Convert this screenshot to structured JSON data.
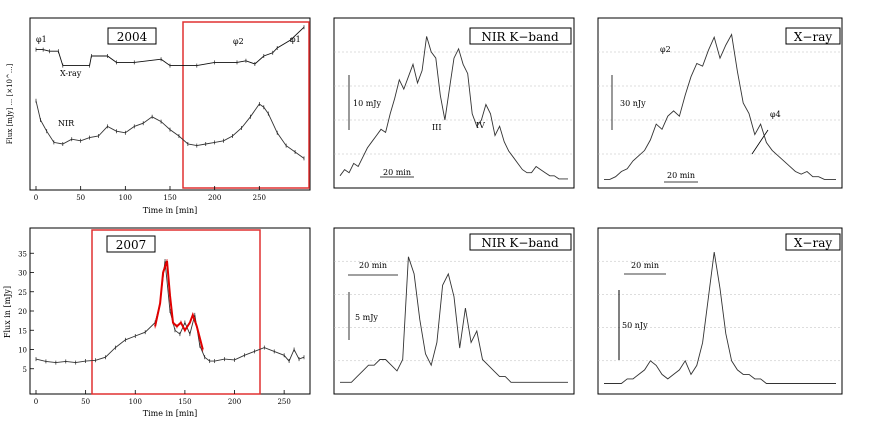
{
  "chart_data": [
    {
      "id": "p1",
      "type": "line",
      "label_box": "2004",
      "xlabel": "Time in [min]",
      "ylabel": "Flux [mJy] ... [×10^...]",
      "xlim": [
        0,
        300
      ],
      "ylim": [
        0,
        10
      ],
      "x_ticks": [
        "0",
        "50",
        "100",
        "150",
        "200",
        "250"
      ],
      "annotations": [
        "φ1",
        "φ2",
        "φ1",
        "X-ray",
        "NIR"
      ],
      "series": [
        {
          "name": "X-ray",
          "x": [
            0,
            8,
            15,
            25,
            30,
            60,
            62,
            80,
            90,
            110,
            140,
            150,
            180,
            200,
            225,
            235,
            245,
            255,
            265,
            270,
            285,
            300
          ],
          "y": [
            8.4,
            8.4,
            8.3,
            8.3,
            7.4,
            7.4,
            8.0,
            8.0,
            7.6,
            7.6,
            7.8,
            7.4,
            7.4,
            7.6,
            7.6,
            7.7,
            7.5,
            8.0,
            8.2,
            8.5,
            9.0,
            9.8
          ]
        },
        {
          "name": "NIR",
          "x": [
            0,
            5,
            12,
            20,
            30,
            40,
            50,
            60,
            70,
            80,
            90,
            100,
            110,
            120,
            130,
            140,
            150,
            160,
            170,
            180,
            190,
            200,
            210,
            220,
            230,
            240,
            250,
            255,
            260,
            270,
            280,
            290,
            300
          ],
          "y": [
            5.2,
            4.0,
            3.3,
            2.6,
            2.5,
            2.8,
            2.7,
            2.9,
            3.0,
            3.6,
            3.3,
            3.2,
            3.6,
            3.8,
            4.2,
            3.9,
            3.4,
            3.0,
            2.5,
            2.4,
            2.5,
            2.6,
            2.7,
            3.0,
            3.5,
            4.2,
            5.0,
            4.8,
            4.4,
            3.2,
            2.4,
            2.0,
            1.6
          ]
        }
      ],
      "highlight_range": [
        170,
        300
      ]
    },
    {
      "id": "p2",
      "type": "line",
      "label_box": "NIR  K−band",
      "annotations": [
        "10 mJy",
        "III",
        "IV",
        "20 min"
      ],
      "series": [
        {
          "name": "NIR K-band",
          "x": [
            0,
            1,
            2,
            3,
            4,
            5,
            6,
            7,
            8,
            9,
            10,
            11,
            12,
            13,
            14,
            15,
            16,
            17,
            18,
            19,
            20,
            21,
            22,
            23,
            24,
            25,
            26,
            27,
            28,
            29,
            30,
            31,
            32,
            33,
            34,
            35,
            36,
            37,
            38,
            39,
            40,
            41,
            42,
            43,
            44,
            45,
            46,
            47,
            48,
            49,
            50
          ],
          "y": [
            2,
            4,
            3,
            6,
            5,
            8,
            11,
            13,
            15,
            17,
            16,
            22,
            27,
            33,
            30,
            34,
            38,
            32,
            36,
            47,
            42,
            40,
            28,
            20,
            30,
            40,
            43,
            38,
            35,
            22,
            18,
            20,
            25,
            22,
            15,
            18,
            13,
            10,
            8,
            6,
            4,
            3,
            3,
            5,
            4,
            3,
            2,
            2,
            1,
            1,
            1
          ]
        }
      ]
    },
    {
      "id": "p3",
      "type": "line",
      "label_box": "X−ray",
      "annotations": [
        "φ2",
        "30 nJy",
        "20 min",
        "φ4"
      ],
      "series": [
        {
          "name": "X-ray",
          "x": [
            0,
            1,
            2,
            3,
            4,
            5,
            6,
            7,
            8,
            9,
            10,
            11,
            12,
            13,
            14,
            15,
            16,
            17,
            18,
            19,
            20,
            21,
            22,
            23,
            24,
            25,
            26,
            27,
            28,
            29,
            30,
            31,
            32,
            33,
            34,
            35,
            36,
            37,
            38,
            39,
            40
          ],
          "y": [
            1,
            1,
            2,
            4,
            5,
            8,
            10,
            12,
            16,
            22,
            20,
            25,
            27,
            25,
            33,
            40,
            45,
            44,
            50,
            55,
            47,
            52,
            56,
            42,
            30,
            26,
            18,
            22,
            15,
            12,
            10,
            8,
            6,
            4,
            3,
            4,
            2,
            2,
            1,
            1,
            1
          ]
        }
      ]
    },
    {
      "id": "p4",
      "type": "line",
      "label_box": "2007",
      "xlabel": "Time in [min]",
      "ylabel": "Flux in [mJy]",
      "xlim": [
        0,
        270
      ],
      "ylim": [
        0,
        40
      ],
      "x_ticks": [
        "0",
        "50",
        "100",
        "150",
        "200",
        "250"
      ],
      "y_ticks": [
        "5",
        "10",
        "15",
        "20",
        "25",
        "30",
        "35"
      ],
      "series": [
        {
          "name": "black",
          "x": [
            0,
            10,
            20,
            30,
            40,
            50,
            60,
            70,
            80,
            90,
            100,
            110,
            120,
            125,
            130,
            135,
            140,
            145,
            150,
            155,
            160,
            165,
            170,
            175,
            180,
            190,
            200,
            210,
            220,
            230,
            240,
            250,
            255,
            260,
            265,
            270
          ],
          "y": [
            7.5,
            6.9,
            6.6,
            6.9,
            6.6,
            7.0,
            7.2,
            8.0,
            10.5,
            12.5,
            13.5,
            14.5,
            17,
            22,
            33,
            20,
            15,
            14,
            17,
            14,
            19,
            11,
            8,
            7,
            7,
            7.5,
            7.3,
            8.5,
            9.5,
            10.5,
            9.5,
            8.5,
            7,
            10,
            7.5,
            8
          ]
        },
        {
          "name": "red",
          "x": [
            120,
            125,
            128,
            132,
            135,
            138,
            142,
            146,
            150,
            155,
            158,
            162,
            165,
            168
          ],
          "y": [
            16,
            22,
            30,
            33,
            24,
            17,
            16,
            17,
            15,
            17,
            19,
            16,
            13,
            10
          ]
        }
      ],
      "highlight_range": [
        60,
        222
      ]
    },
    {
      "id": "p5",
      "type": "line",
      "label_box": "NIR  K−band",
      "annotations": [
        "20 min",
        "5 mJy"
      ],
      "series": [
        {
          "name": "NIR K-band",
          "x": [
            0,
            1,
            2,
            3,
            4,
            5,
            6,
            7,
            8,
            9,
            10,
            11,
            12,
            13,
            14,
            15,
            16,
            17,
            18,
            19,
            20,
            21,
            22,
            23,
            24,
            25,
            26,
            27,
            28,
            29,
            30,
            31,
            32,
            33,
            34,
            35,
            36,
            37,
            38,
            39,
            40
          ],
          "y": [
            1,
            1,
            1,
            2,
            3,
            4,
            4,
            5,
            5,
            4,
            3,
            5,
            23,
            20,
            12,
            6,
            4,
            8,
            18,
            20,
            16,
            7,
            14,
            8,
            10,
            5,
            4,
            3,
            2,
            2,
            1,
            1,
            1,
            1,
            1,
            1,
            1,
            1,
            1,
            1,
            1
          ]
        }
      ]
    },
    {
      "id": "p6",
      "type": "line",
      "label_box": "X−ray",
      "annotations": [
        "20 min",
        "50 nJy"
      ],
      "series": [
        {
          "name": "X-ray",
          "x": [
            0,
            1,
            2,
            3,
            4,
            5,
            6,
            7,
            8,
            9,
            10,
            11,
            12,
            13,
            14,
            15,
            16,
            17,
            18,
            19,
            20,
            21,
            22,
            23,
            24,
            25,
            26,
            27,
            28,
            29,
            30,
            31,
            32,
            33,
            34,
            35,
            36,
            37,
            38,
            39,
            40
          ],
          "y": [
            1,
            1,
            1,
            1,
            2,
            2,
            3,
            4,
            6,
            5,
            3,
            2,
            3,
            4,
            6,
            3,
            5,
            10,
            20,
            30,
            22,
            12,
            6,
            4,
            3,
            3,
            2,
            2,
            1,
            1,
            1,
            1,
            1,
            1,
            1,
            1,
            1,
            1,
            1,
            1,
            1
          ]
        }
      ]
    }
  ]
}
